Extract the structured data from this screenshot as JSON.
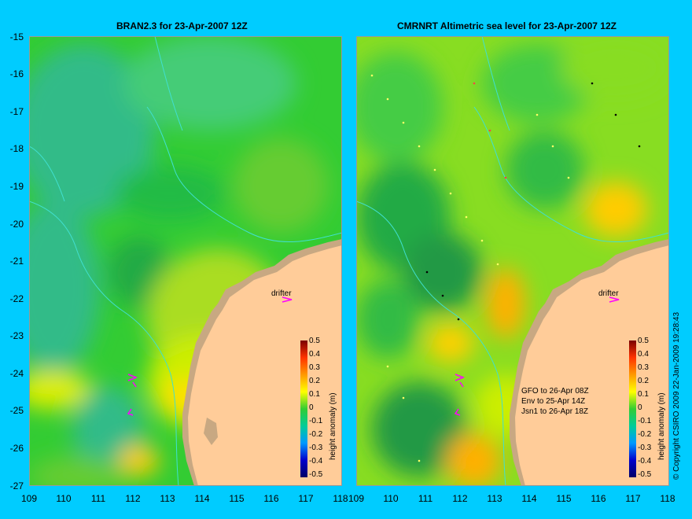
{
  "left_panel": {
    "title": "BRAN2.3 for 23-Apr-2007 12Z"
  },
  "right_panel": {
    "title": "CMRNRT Altimetric sea level  for 23-Apr-2007 12Z"
  },
  "y_axis_labels": [
    "-15",
    "-16",
    "-17",
    "-18",
    "-19",
    "-20",
    "-21",
    "-22",
    "-23",
    "-24",
    "-25",
    "-26",
    "-27"
  ],
  "x_axis_labels": [
    "109",
    "110",
    "111",
    "112",
    "113",
    "114",
    "115",
    "116",
    "117",
    "118"
  ],
  "drifter_label": "drifter",
  "satellite_notes": [
    "GFO to 26-Apr 08Z",
    "Env to 25-Apr 14Z",
    "Jsn1 to 26-Apr 18Z"
  ],
  "colorbar": {
    "ticks": [
      "0.5",
      "0.4",
      "0.3",
      "0.2",
      "0.1",
      "0",
      "-0.1",
      "-0.2",
      "-0.3",
      "-0.4",
      "-0.5"
    ],
    "label": "height anomaly (m)"
  },
  "copyright": "© Copyright CSIRO 2009   22-Jan-2009 19:28:43",
  "colors": {
    "background": "#00ccff",
    "land": "#ffcc99",
    "coast": "#c0a080",
    "drifter": "#ff00ff",
    "contour": "#40e0d0"
  }
}
